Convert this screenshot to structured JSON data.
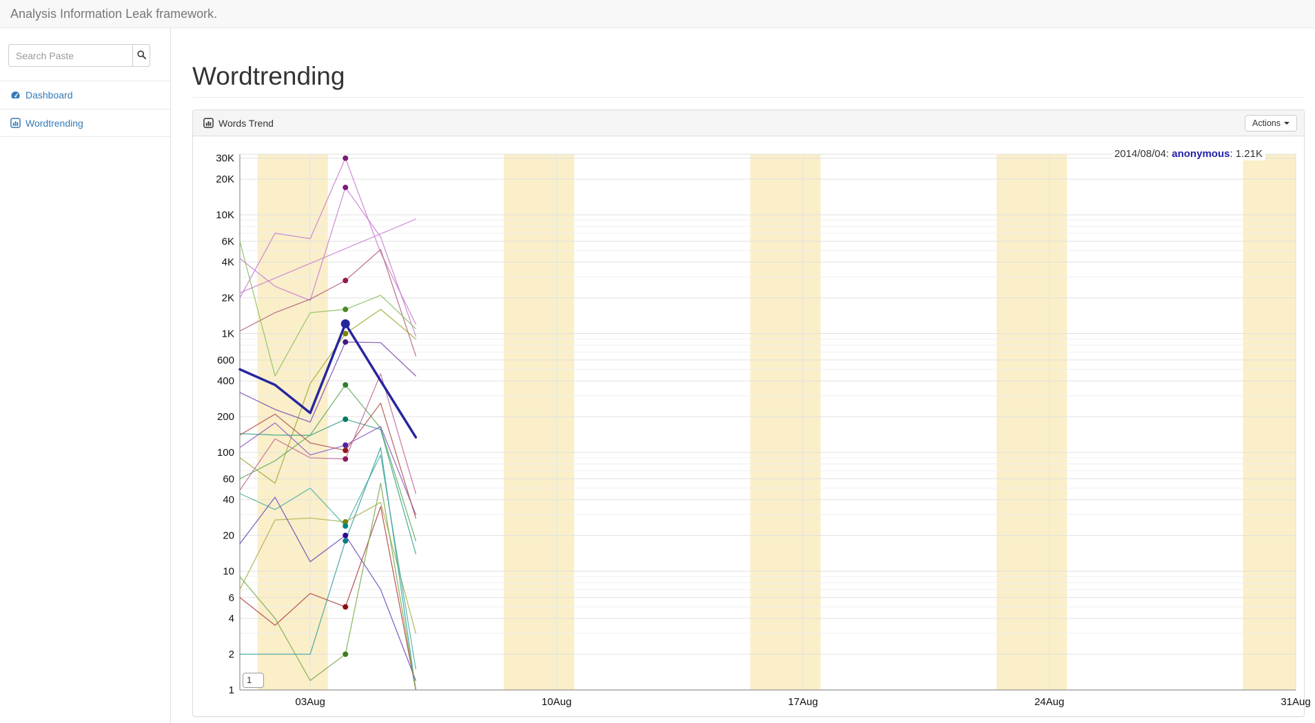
{
  "navbar": {
    "brand": "Analysis Information Leak framework."
  },
  "sidebar": {
    "search": {
      "placeholder": "Search Paste",
      "value": "",
      "button_icon": "search-icon"
    },
    "items": [
      {
        "label": "Dashboard",
        "icon": "dashboard-icon"
      },
      {
        "label": "Wordtrending",
        "icon": "bar-chart-icon"
      }
    ]
  },
  "main": {
    "page_title": "Wordtrending",
    "panel": {
      "title": "Words Trend",
      "title_icon": "bar-chart-icon",
      "actions_label": "Actions"
    }
  },
  "chart_data": {
    "type": "line",
    "title": "Words Trend",
    "x_axis": {
      "tick_days": [
        3,
        10,
        17,
        24,
        31
      ],
      "tick_labels": [
        "03Aug",
        "10Aug",
        "17Aug",
        "24Aug",
        "31Aug"
      ],
      "domain_days": [
        1,
        31
      ]
    },
    "y_axis": {
      "scale": "log",
      "domain": [
        1,
        32000
      ],
      "tick_values": [
        1,
        2,
        4,
        6,
        10,
        20,
        40,
        60,
        100,
        200,
        400,
        600,
        1000,
        2000,
        4000,
        6000,
        10000,
        20000,
        30000
      ],
      "tick_labels": [
        "1",
        "2",
        "4",
        "6",
        "10",
        "20",
        "40",
        "60",
        "100",
        "200",
        "400",
        "600",
        "1K",
        "2K",
        "4K",
        "6K",
        "10K",
        "20K",
        "30K"
      ]
    },
    "weekend_bands": {
      "start_days": [
        2,
        9,
        16,
        23,
        30
      ],
      "color": "#faefc9"
    },
    "hover": {
      "day": 4,
      "date_label": "2014/08/04: ",
      "series_label": "anonymous",
      "value_label": ": 1.21K"
    },
    "axis_min_box_label": "1",
    "series": [
      {
        "name": "anonymous",
        "color": "#26269e",
        "dot_color": "#26269e",
        "line_width": 3.5,
        "values": [
          500,
          370,
          215,
          1210,
          400,
          134
        ]
      },
      {
        "color": "#c77fd0",
        "dot_color": "#7a1b7a",
        "line_width": 1.3,
        "values": [
          2000,
          7000,
          6300,
          30000,
          4800,
          1200
        ]
      },
      {
        "color": "#c77fd0",
        "dot_color": "#7a1b7a",
        "line_width": 1.3,
        "values": [
          4300,
          2500,
          1900,
          17000,
          6500,
          950
        ]
      },
      {
        "color": "#c77fd0",
        "dot_color": "#7a1b7a",
        "line_width": 1.3,
        "values": [
          2200,
          null,
          null,
          null,
          null,
          9200
        ]
      },
      {
        "color": "#b06080",
        "dot_color": "#8f1a4d",
        "line_width": 1.3,
        "values": [
          1050,
          1500,
          1950,
          2800,
          5100,
          650
        ]
      },
      {
        "color": "#8cbf60",
        "dot_color": "#4a8a2a",
        "line_width": 1.3,
        "values": [
          6000,
          440,
          1500,
          1600,
          2100,
          1100
        ]
      },
      {
        "color": "#a2a832",
        "dot_color": "#7a8205",
        "line_width": 1.3,
        "values": [
          90,
          55,
          380,
          1000,
          1600,
          900
        ]
      },
      {
        "color": "#7a4ab0",
        "dot_color": "#46187e",
        "line_width": 1.3,
        "values": [
          320,
          230,
          180,
          850,
          840,
          440
        ]
      },
      {
        "color": "#5aaa5a",
        "dot_color": "#2e7d32",
        "line_width": 1.3,
        "values": [
          60,
          85,
          140,
          370,
          160,
          18
        ]
      },
      {
        "color": "#3aa08c",
        "dot_color": "#007a63",
        "line_width": 1.3,
        "values": [
          144,
          140,
          139,
          190,
          156,
          14
        ]
      },
      {
        "color": "#8a5ac2",
        "dot_color": "#53209e",
        "line_width": 1.3,
        "values": [
          110,
          177,
          95,
          115,
          165,
          30
        ]
      },
      {
        "color": "#b05050",
        "dot_color": "#8e1a1a",
        "line_width": 1.3,
        "values": [
          140,
          210,
          120,
          104,
          260,
          28
        ]
      },
      {
        "color": "#c06a9a",
        "dot_color": "#8e1a5e",
        "line_width": 1.3,
        "values": [
          48,
          130,
          90,
          88,
          460,
          45
        ]
      },
      {
        "color": "#aab04f",
        "dot_color": "#7a8205",
        "line_width": 1.3,
        "values": [
          7,
          27,
          28,
          26,
          38,
          3
        ]
      },
      {
        "color": "#4ab0a0",
        "dot_color": "#008577",
        "line_width": 1.3,
        "values": [
          45,
          33,
          50,
          24,
          95,
          1.5
        ]
      },
      {
        "color": "#6a4ab8",
        "dot_color": "#2a0e8f",
        "line_width": 1.3,
        "values": [
          17,
          42,
          12,
          20,
          7,
          1.2
        ]
      },
      {
        "color": "#3aa0a0",
        "dot_color": "#067f7f",
        "line_width": 1.3,
        "values": [
          2,
          2,
          2,
          18,
          110,
          1
        ]
      },
      {
        "color": "#b04040",
        "dot_color": "#8e1010",
        "line_width": 1.3,
        "values": [
          6,
          3.5,
          6.5,
          5,
          35,
          1
        ]
      },
      {
        "color": "#7aaa4a",
        "dot_color": "#3f7d1d",
        "line_width": 1.3,
        "values": [
          9,
          4,
          1.2,
          2,
          55,
          1
        ]
      }
    ]
  }
}
